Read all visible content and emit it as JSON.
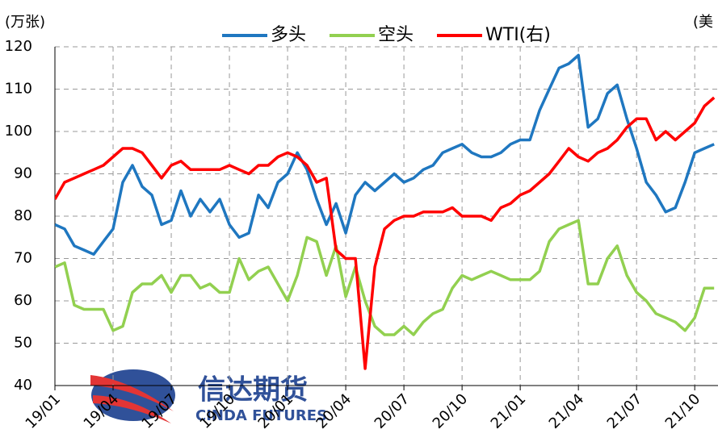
{
  "chart_data": {
    "type": "line",
    "left_unit": "(万张)",
    "right_unit": "(美",
    "watermark": {
      "cn": "信达期货",
      "en": "CINDA FUTURES"
    },
    "x": [
      0,
      0.5,
      1,
      1.5,
      2,
      2.5,
      3,
      3.5,
      4,
      4.5,
      5,
      5.5,
      6,
      6.5,
      7,
      7.5,
      8,
      8.5,
      9,
      9.5,
      10,
      10.5,
      11,
      11.5,
      12,
      12.5,
      13,
      13.5,
      14,
      14.5,
      15,
      15.5,
      16,
      16.5,
      17,
      17.5,
      18,
      18.5,
      19,
      19.5,
      20,
      20.5,
      21,
      21.5,
      22,
      22.5,
      23,
      23.5,
      24,
      24.5,
      25,
      25.5,
      26,
      26.5,
      27,
      27.5,
      28,
      28.5,
      29,
      29.5,
      30,
      30.5,
      31,
      31.5,
      32,
      32.5,
      33,
      33.5,
      34
    ],
    "xlim": [
      0,
      34.2
    ],
    "xticks": [
      {
        "value": 0,
        "label": "19/01"
      },
      {
        "value": 3,
        "label": "19/04"
      },
      {
        "value": 6,
        "label": "19/07"
      },
      {
        "value": 9,
        "label": "19/10"
      },
      {
        "value": 12,
        "label": "20/01"
      },
      {
        "value": 15,
        "label": "20/04"
      },
      {
        "value": 18,
        "label": "20/07"
      },
      {
        "value": 21,
        "label": "20/10"
      },
      {
        "value": 24,
        "label": "21/01"
      },
      {
        "value": 27,
        "label": "21/04"
      },
      {
        "value": 30,
        "label": "21/07"
      },
      {
        "value": 33,
        "label": "21/10"
      }
    ],
    "ylim": [
      40,
      120
    ],
    "yticks": [
      40,
      50,
      60,
      70,
      80,
      90,
      100,
      110,
      120
    ],
    "y2lim": [
      -20,
      100
    ],
    "grid": true,
    "series": [
      {
        "name": "多头",
        "color": "#1f77c0",
        "values": [
          78,
          77,
          73,
          72,
          71,
          74,
          77,
          88,
          92,
          87,
          85,
          78,
          79,
          86,
          80,
          84,
          81,
          84,
          78,
          75,
          76,
          85,
          82,
          88,
          90,
          95,
          91,
          84,
          78,
          83,
          76,
          85,
          88,
          86,
          88,
          90,
          88,
          89,
          91,
          92,
          95,
          96,
          97,
          95,
          94,
          94,
          95,
          97,
          98,
          98,
          105,
          110,
          115,
          116,
          118,
          101,
          103,
          109,
          111,
          103,
          96,
          88,
          85,
          81,
          82,
          88,
          95,
          96,
          97
        ]
      },
      {
        "name": "空头",
        "color": "#92d050",
        "values": [
          68,
          69,
          59,
          58,
          58,
          58,
          53,
          54,
          62,
          64,
          64,
          66,
          62,
          66,
          66,
          63,
          64,
          62,
          62,
          70,
          65,
          67,
          68,
          64,
          60,
          66,
          75,
          74,
          66,
          73,
          61,
          68,
          60,
          54,
          52,
          52,
          54,
          52,
          55,
          57,
          58,
          63,
          66,
          65,
          66,
          67,
          66,
          65,
          65,
          65,
          67,
          74,
          77,
          78,
          79,
          64,
          64,
          70,
          73,
          66,
          62,
          60,
          57,
          56,
          55,
          53,
          56,
          63,
          63
        ]
      },
      {
        "name": "WTI(右)",
        "color": "#ff0000",
        "axis": "y2",
        "values": [
          46,
          52,
          53.5,
          55,
          56.5,
          58,
          61,
          64,
          64,
          62.5,
          58,
          53.5,
          58,
          59.5,
          56.5,
          56.5,
          56.5,
          56.5,
          58,
          56.5,
          55,
          58,
          58,
          61,
          62.5,
          61,
          58,
          52,
          53.5,
          28,
          25,
          25,
          -14,
          22,
          35.5,
          38.5,
          40,
          40,
          41.5,
          41.5,
          41.5,
          43,
          40,
          40,
          40,
          38.5,
          43,
          44.5,
          47.5,
          49,
          52,
          55,
          59.5,
          64,
          61,
          59.5,
          62.5,
          64,
          67,
          71.5,
          74.5,
          74.5,
          67,
          70,
          67,
          70,
          73,
          79,
          82
        ]
      }
    ]
  }
}
